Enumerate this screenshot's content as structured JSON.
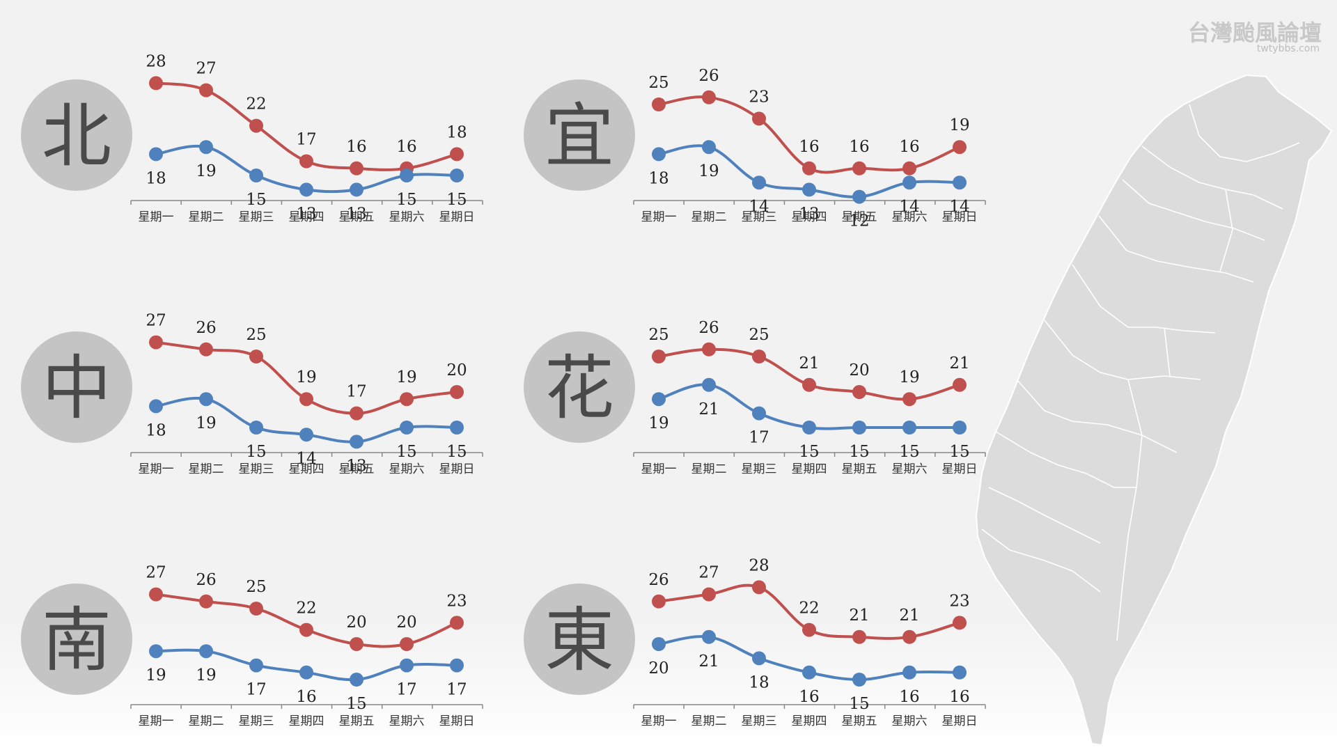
{
  "watermark": {
    "title": "台灣颱風論壇",
    "url": "twtybbs.com"
  },
  "colors": {
    "high": "#c0504d",
    "low": "#4f81bd",
    "circle": "#c4c4c4",
    "map": "#dcdcdc"
  },
  "days": [
    "星期一",
    "星期二",
    "星期三",
    "星期四",
    "星期五",
    "星期六",
    "星期日"
  ],
  "map_icon": "taiwan-map",
  "chart_data": [
    {
      "type": "line",
      "region": "北",
      "categories": [
        "星期一",
        "星期二",
        "星期三",
        "星期四",
        "星期五",
        "星期六",
        "星期日"
      ],
      "series": [
        {
          "values": [
            28,
            27,
            22,
            17,
            16,
            16,
            18
          ]
        },
        {
          "values": [
            18,
            19,
            15,
            13,
            13,
            15,
            15
          ]
        }
      ]
    },
    {
      "type": "line",
      "region": "宜",
      "categories": [
        "星期一",
        "星期二",
        "星期三",
        "星期四",
        "星期五",
        "星期六",
        "星期日"
      ],
      "series": [
        {
          "values": [
            25,
            26,
            23,
            16,
            16,
            16,
            19
          ]
        },
        {
          "values": [
            18,
            19,
            14,
            13,
            12,
            14,
            14
          ]
        }
      ]
    },
    {
      "type": "line",
      "region": "中",
      "categories": [
        "星期一",
        "星期二",
        "星期三",
        "星期四",
        "星期五",
        "星期六",
        "星期日"
      ],
      "series": [
        {
          "values": [
            27,
            26,
            25,
            19,
            17,
            19,
            20
          ]
        },
        {
          "values": [
            18,
            19,
            15,
            14,
            13,
            15,
            15
          ]
        }
      ]
    },
    {
      "type": "line",
      "region": "花",
      "categories": [
        "星期一",
        "星期二",
        "星期三",
        "星期四",
        "星期五",
        "星期六",
        "星期日"
      ],
      "series": [
        {
          "values": [
            25,
            26,
            25,
            21,
            20,
            19,
            21
          ]
        },
        {
          "values": [
            19,
            21,
            17,
            15,
            15,
            15,
            15
          ]
        }
      ]
    },
    {
      "type": "line",
      "region": "南",
      "categories": [
        "星期一",
        "星期二",
        "星期三",
        "星期四",
        "星期五",
        "星期六",
        "星期日"
      ],
      "series": [
        {
          "values": [
            27,
            26,
            25,
            22,
            20,
            20,
            23
          ]
        },
        {
          "values": [
            19,
            19,
            17,
            16,
            15,
            17,
            17
          ]
        }
      ]
    },
    {
      "type": "line",
      "region": "東",
      "categories": [
        "星期一",
        "星期二",
        "星期三",
        "星期四",
        "星期五",
        "星期六",
        "星期日"
      ],
      "series": [
        {
          "values": [
            26,
            27,
            28,
            22,
            21,
            21,
            23
          ]
        },
        {
          "values": [
            20,
            21,
            18,
            16,
            15,
            16,
            16
          ]
        }
      ]
    }
  ]
}
